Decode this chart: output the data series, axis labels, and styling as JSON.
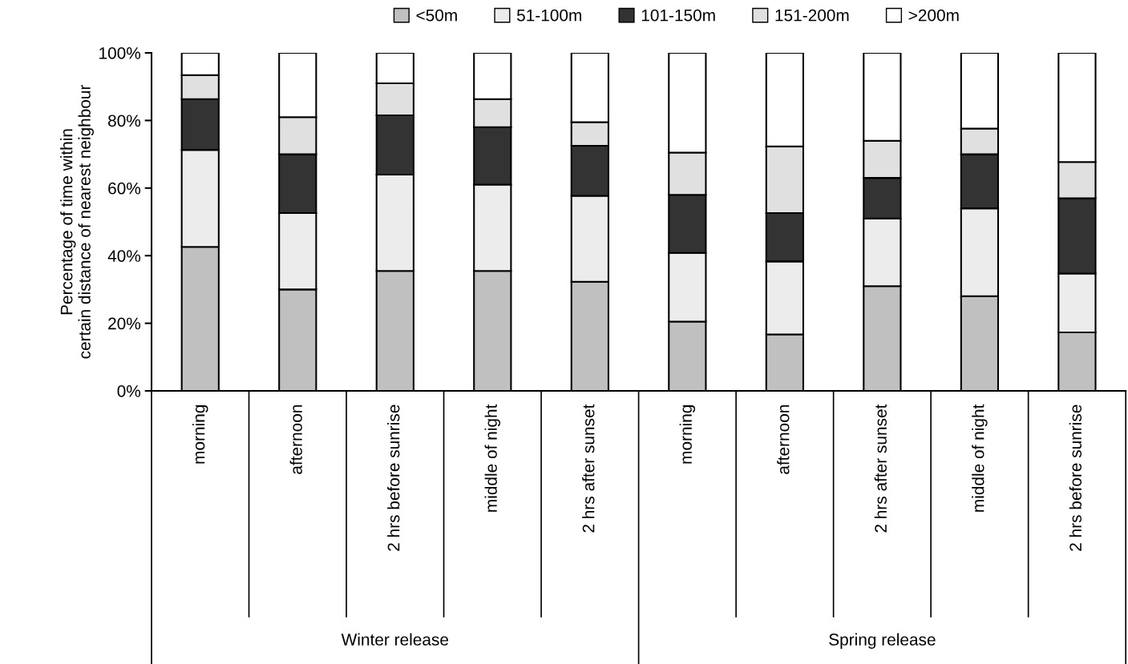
{
  "chart_data": {
    "type": "bar",
    "stacked": true,
    "ylabel": "Percentage of time within\ncertain distance of nearest neighbour",
    "categories": [
      "morning",
      "afternoon",
      "2 hrs before sunrise",
      "middle of night",
      "2 hrs after sunset",
      "morning",
      "afternoon",
      "2 hrs after sunset",
      "middle of night",
      "2 hrs before sunrise"
    ],
    "series": [
      {
        "name": "<50m",
        "color": "#c0c0c0",
        "values": [
          42.6,
          30,
          35.5,
          35.5,
          32.3,
          20.5,
          16.7,
          31,
          28,
          17.3
        ]
      },
      {
        "name": "51-100m",
        "color": "#ececec",
        "values": [
          28.7,
          22.6,
          28.5,
          25.5,
          25.4,
          20.3,
          21.6,
          20,
          26,
          17.4
        ]
      },
      {
        "name": "101-150m",
        "color": "#333333",
        "values": [
          15,
          17.4,
          17.5,
          17,
          14.8,
          17.2,
          14.3,
          12,
          16,
          22.3
        ]
      },
      {
        "name": "151-200m",
        "color": "#e0e0e0",
        "values": [
          7.1,
          11,
          9.5,
          8.3,
          7,
          12.5,
          19.7,
          11,
          7.6,
          10.7
        ]
      },
      {
        "name": ">200m",
        "color": "#ffffff",
        "values": [
          6.6,
          19,
          9,
          13.7,
          20.5,
          29.5,
          27.7,
          26,
          22.4,
          32.3
        ]
      }
    ],
    "annotations": [
      "Winter release",
      "Spring release"
    ],
    "ylim": [
      0,
      100
    ],
    "yticks": [
      {
        "value": 0,
        "label": "0%"
      },
      {
        "value": 20,
        "label": "20%"
      },
      {
        "value": 40,
        "label": "40%"
      },
      {
        "value": 60,
        "label": "60%"
      },
      {
        "value": 80,
        "label": "80%"
      },
      {
        "value": 100,
        "label": "100%"
      }
    ],
    "legend": "top",
    "grid": false
  }
}
